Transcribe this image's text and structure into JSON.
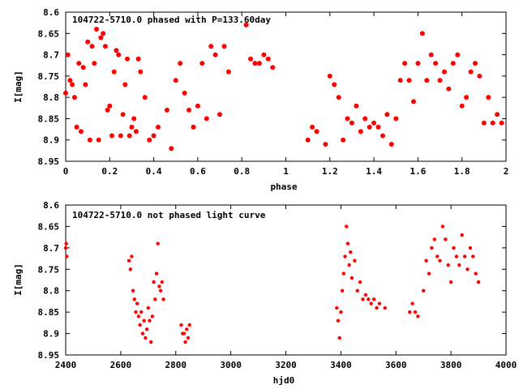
{
  "chart_data": [
    {
      "type": "scatter",
      "title": "104722-5710.0 phased with P=133.60day",
      "xlabel": "phase",
      "ylabel": "I[mag]",
      "xlim": [
        0,
        2
      ],
      "ylim": [
        8.6,
        8.95
      ],
      "y_inverted": true,
      "xticks": [
        "0",
        "0.2",
        "0.4",
        "0.6",
        "0.8",
        "1",
        "1.2",
        "1.4",
        "1.6",
        "1.8",
        "2"
      ],
      "yticks": [
        "8.6",
        "8.65",
        "8.7",
        "8.75",
        "8.8",
        "8.85",
        "8.9",
        "8.95"
      ],
      "marker_color": "#ff0000",
      "series": [
        {
          "x": [
            0.0,
            0.01,
            0.02,
            0.03,
            0.04,
            0.05,
            0.06,
            0.07,
            0.08,
            0.09,
            0.1,
            0.11,
            0.12,
            0.13,
            0.14,
            0.15,
            0.16,
            0.17,
            0.18,
            0.19,
            0.2,
            0.21,
            0.22,
            0.23,
            0.24,
            0.25,
            0.26,
            0.27,
            0.28,
            0.29,
            0.3,
            0.31,
            0.32,
            0.33,
            0.34,
            0.36,
            0.38,
            0.4,
            0.42,
            0.46,
            0.48,
            0.5,
            0.52,
            0.54,
            0.56,
            0.58,
            0.6,
            0.62,
            0.64,
            0.66,
            0.68,
            0.7,
            0.72,
            0.74,
            0.82,
            0.84,
            0.86,
            0.88,
            0.9,
            0.92,
            0.94,
            1.1,
            1.12,
            1.14,
            1.18,
            1.2,
            1.22,
            1.24,
            1.26,
            1.28,
            1.3,
            1.32,
            1.34,
            1.36,
            1.38,
            1.4,
            1.42,
            1.44,
            1.46,
            1.48,
            1.5,
            1.52,
            1.54,
            1.56,
            1.58,
            1.6,
            1.62,
            1.64,
            1.66,
            1.68,
            1.7,
            1.72,
            1.74,
            1.76,
            1.78,
            1.8,
            1.82,
            1.84,
            1.86,
            1.88,
            1.9,
            1.92,
            1.94,
            1.96,
            1.98
          ],
          "y": [
            8.79,
            8.7,
            8.76,
            8.77,
            8.8,
            8.87,
            8.72,
            8.88,
            8.73,
            8.77,
            8.67,
            8.9,
            8.68,
            8.72,
            8.64,
            8.9,
            8.66,
            8.65,
            8.68,
            8.83,
            8.82,
            8.89,
            8.74,
            8.69,
            8.7,
            8.89,
            8.84,
            8.77,
            8.71,
            8.89,
            8.87,
            8.85,
            8.88,
            8.71,
            8.74,
            8.8,
            8.9,
            8.89,
            8.87,
            8.83,
            8.92,
            8.76,
            8.72,
            8.79,
            8.83,
            8.87,
            8.82,
            8.72,
            8.85,
            8.68,
            8.7,
            8.84,
            8.68,
            8.74,
            8.63,
            8.71,
            8.72,
            8.72,
            8.7,
            8.71,
            8.73,
            8.9,
            8.87,
            8.88,
            8.91,
            8.75,
            8.77,
            8.8,
            8.9,
            8.85,
            8.86,
            8.82,
            8.88,
            8.85,
            8.87,
            8.86,
            8.87,
            8.89,
            8.84,
            8.91,
            8.85,
            8.76,
            8.72,
            8.76,
            8.81,
            8.72,
            8.65,
            8.76,
            8.7,
            8.72,
            8.76,
            8.74,
            8.78,
            8.72,
            8.7,
            8.82,
            8.8,
            8.74,
            8.72,
            8.75,
            8.86,
            8.8,
            8.86,
            8.84,
            8.86
          ]
        }
      ]
    },
    {
      "type": "scatter",
      "title": "104722-5710.0 not phased light curve",
      "xlabel": "hjd0",
      "ylabel": "I[mag]",
      "xlim": [
        2400,
        4000
      ],
      "ylim": [
        8.6,
        8.95
      ],
      "y_inverted": true,
      "xticks": [
        "2400",
        "2600",
        "2800",
        "3000",
        "3200",
        "3400",
        "3600",
        "3800",
        "4000"
      ],
      "yticks": [
        "8.6",
        "8.65",
        "8.7",
        "8.75",
        "8.8",
        "8.85",
        "8.9",
        "8.95"
      ],
      "marker_color": "#ff0000",
      "series": [
        {
          "x": [
            2400,
            2402,
            2404,
            2630,
            2635,
            2640,
            2645,
            2650,
            2655,
            2660,
            2665,
            2670,
            2675,
            2680,
            2685,
            2690,
            2695,
            2700,
            2705,
            2710,
            2715,
            2720,
            2725,
            2730,
            2735,
            2740,
            2745,
            2750,
            2755,
            2820,
            2825,
            2830,
            2835,
            2840,
            2845,
            2850,
            3385,
            3390,
            3395,
            3400,
            3405,
            3410,
            3415,
            3420,
            3425,
            3430,
            3435,
            3440,
            3450,
            3460,
            3470,
            3480,
            3490,
            3500,
            3510,
            3520,
            3530,
            3540,
            3560,
            3650,
            3660,
            3670,
            3680,
            3700,
            3710,
            3720,
            3730,
            3740,
            3750,
            3760,
            3770,
            3780,
            3790,
            3800,
            3810,
            3820,
            3830,
            3840,
            3850,
            3860,
            3870,
            3880,
            3890,
            3900
          ],
          "y": [
            8.7,
            8.69,
            8.72,
            8.73,
            8.75,
            8.72,
            8.8,
            8.82,
            8.85,
            8.83,
            8.86,
            8.88,
            8.85,
            8.9,
            8.87,
            8.91,
            8.89,
            8.84,
            8.87,
            8.92,
            8.86,
            8.78,
            8.82,
            8.76,
            8.69,
            8.79,
            8.8,
            8.78,
            8.82,
            8.88,
            8.9,
            8.9,
            8.92,
            8.89,
            8.91,
            8.88,
            8.84,
            8.87,
            8.91,
            8.85,
            8.8,
            8.76,
            8.72,
            8.65,
            8.69,
            8.74,
            8.71,
            8.77,
            8.73,
            8.8,
            8.78,
            8.82,
            8.81,
            8.82,
            8.83,
            8.82,
            8.84,
            8.83,
            8.84,
            8.85,
            8.83,
            8.85,
            8.86,
            8.8,
            8.73,
            8.76,
            8.7,
            8.68,
            8.72,
            8.73,
            8.65,
            8.68,
            8.74,
            8.78,
            8.7,
            8.72,
            8.74,
            8.67,
            8.72,
            8.75,
            8.7,
            8.72,
            8.76,
            8.78
          ]
        }
      ]
    }
  ]
}
